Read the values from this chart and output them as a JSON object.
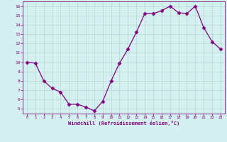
{
  "x": [
    0,
    1,
    2,
    3,
    4,
    5,
    6,
    7,
    8,
    9,
    10,
    11,
    12,
    13,
    14,
    15,
    16,
    17,
    18,
    19,
    20,
    21,
    22,
    23
  ],
  "y": [
    10,
    9.9,
    8.0,
    7.2,
    6.8,
    5.5,
    5.5,
    5.2,
    4.8,
    5.8,
    8.0,
    9.9,
    11.4,
    13.2,
    15.2,
    15.2,
    15.5,
    16.0,
    15.3,
    15.2,
    16.0,
    13.7,
    12.2,
    11.4
  ],
  "line_color": "#800080",
  "marker": "D",
  "markersize": 2.5,
  "linewidth": 0.9,
  "xlabel": "Windchill (Refroidissement éolien,°C)",
  "xlim": [
    -0.5,
    23.5
  ],
  "ylim": [
    4.5,
    16.5
  ],
  "yticks": [
    5,
    6,
    7,
    8,
    9,
    10,
    11,
    12,
    13,
    14,
    15,
    16
  ],
  "xticks": [
    0,
    1,
    2,
    3,
    4,
    5,
    6,
    7,
    8,
    9,
    10,
    11,
    12,
    13,
    14,
    15,
    16,
    17,
    18,
    19,
    20,
    21,
    22,
    23
  ],
  "bg_color": "#d5f0f0",
  "grid_color": "#b0d8d0",
  "font_color": "#800080",
  "font_name": "monospace"
}
